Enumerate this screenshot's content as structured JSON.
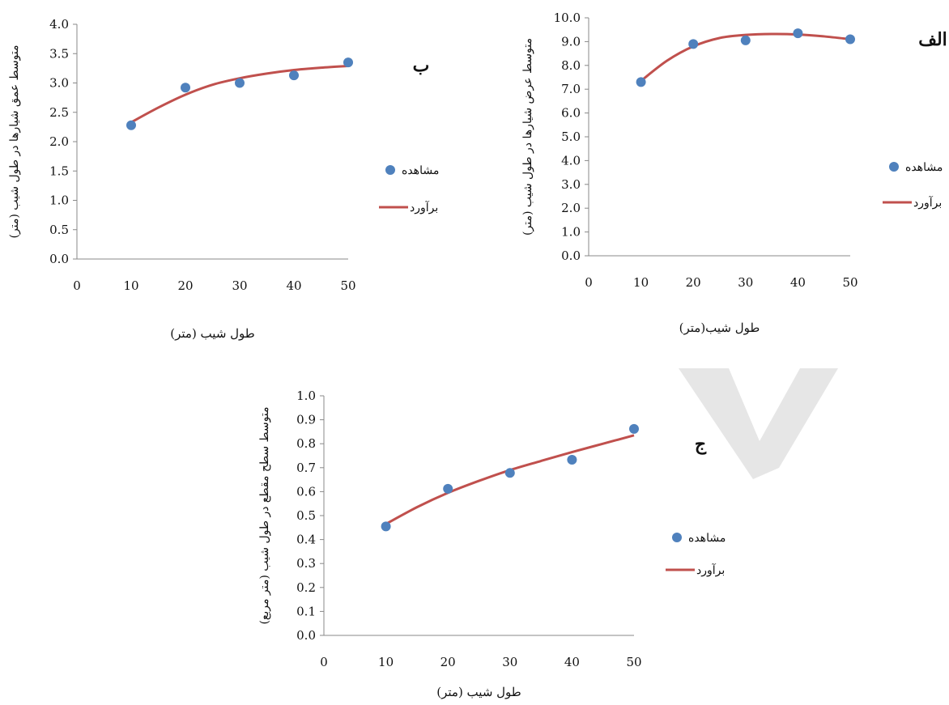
{
  "chart_data": [
    {
      "id": "b",
      "type": "scatter",
      "panel_label": "ب",
      "ylabel": "متوسط عمق شیارها در طول شیب (متر)",
      "xlabel": "طول شیب (متر)",
      "xticks": [
        0,
        10,
        20,
        30,
        40,
        50
      ],
      "yticks": [
        "0.0",
        "0.5",
        "1.0",
        "1.5",
        "2.0",
        "2.5",
        "3.0",
        "3.5",
        "4.0"
      ],
      "xlim": [
        0,
        50
      ],
      "ylim": [
        0,
        4
      ],
      "legend": {
        "observed": "مشاهده",
        "estimated": "برآورد",
        "position": "right"
      },
      "observed": {
        "x": [
          10,
          20,
          30,
          40,
          50
        ],
        "y": [
          2.28,
          2.92,
          3.0,
          3.13,
          3.35
        ]
      },
      "estimated": {
        "x": [
          10,
          15,
          20,
          25,
          30,
          35,
          40,
          45,
          50
        ],
        "y": [
          2.33,
          2.58,
          2.8,
          2.97,
          3.08,
          3.16,
          3.22,
          3.26,
          3.29
        ]
      },
      "colors": {
        "observed": "#4f81bd",
        "estimated": "#c0504d"
      }
    },
    {
      "id": "alef",
      "type": "scatter",
      "panel_label": "الف",
      "ylabel": "متوسط عرض شیارها در طول شیب (متر)",
      "xlabel": "طول شیب(متر)",
      "xticks": [
        0,
        10,
        20,
        30,
        40,
        50
      ],
      "yticks": [
        "0.0",
        "1.0",
        "2.0",
        "3.0",
        "4.0",
        "5.0",
        "6.0",
        "7.0",
        "8.0",
        "9.0",
        "10.0"
      ],
      "xlim": [
        0,
        50
      ],
      "ylim": [
        0,
        10
      ],
      "legend": {
        "observed": "مشاهده",
        "estimated": "برآورد",
        "position": "right"
      },
      "observed": {
        "x": [
          10,
          20,
          30,
          40,
          50
        ],
        "y": [
          7.3,
          8.9,
          9.05,
          9.35,
          9.1
        ]
      },
      "estimated": {
        "x": [
          10,
          15,
          20,
          25,
          30,
          35,
          40,
          45,
          50
        ],
        "y": [
          7.35,
          8.2,
          8.8,
          9.15,
          9.28,
          9.32,
          9.3,
          9.22,
          9.1
        ]
      },
      "colors": {
        "observed": "#4f81bd",
        "estimated": "#c0504d"
      }
    },
    {
      "id": "jim",
      "type": "scatter",
      "panel_label": "ج",
      "ylabel": "متوسط سطح مقطع در طول شیب (متر مربع)",
      "xlabel": "طول شیب (متر)",
      "xticks": [
        0,
        10,
        20,
        30,
        40,
        50
      ],
      "yticks": [
        "0.0",
        "0.1",
        "0.2",
        "0.3",
        "0.4",
        "0.5",
        "0.6",
        "0.7",
        "0.8",
        "0.9",
        "1.0"
      ],
      "xlim": [
        0,
        50
      ],
      "ylim": [
        0,
        1
      ],
      "legend": {
        "observed": "مشاهده",
        "estimated": "برآورد",
        "position": "right"
      },
      "observed": {
        "x": [
          10,
          20,
          30,
          40,
          50
        ],
        "y": [
          0.455,
          0.612,
          0.678,
          0.733,
          0.862
        ]
      },
      "estimated": {
        "x": [
          10,
          15,
          20,
          25,
          30,
          35,
          40,
          45,
          50
        ],
        "y": [
          0.465,
          0.535,
          0.595,
          0.645,
          0.69,
          0.728,
          0.765,
          0.8,
          0.835
        ]
      },
      "colors": {
        "observed": "#4f81bd",
        "estimated": "#c0504d"
      }
    }
  ],
  "watermark": {
    "color": "#e6e6e6"
  }
}
